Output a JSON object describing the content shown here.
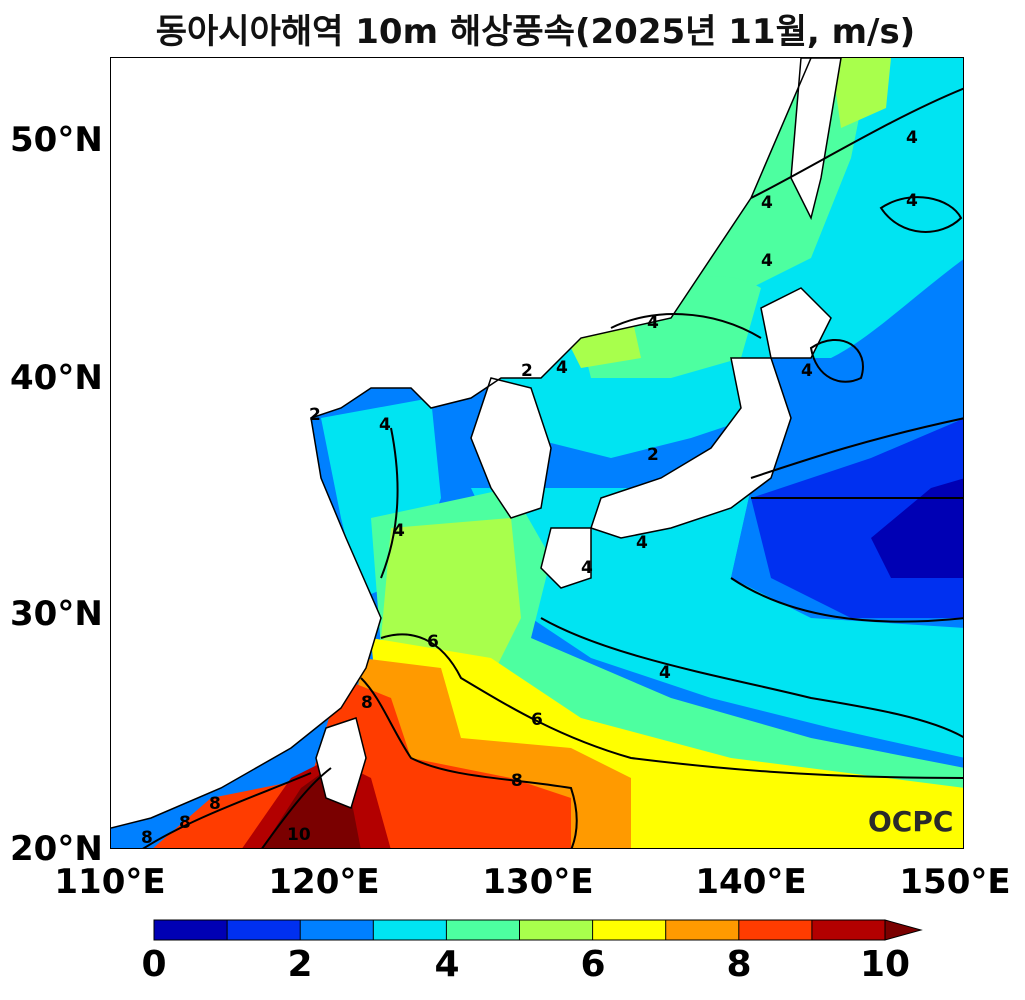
{
  "title": "동아시아해역 10m 해상풍속(2025년 11월, m/s)",
  "map": {
    "region": "East Asian seas",
    "variable": "10m sea surface wind speed",
    "units": "m/s",
    "lon_range": [
      110,
      150
    ],
    "lat_range": [
      20,
      53.5
    ],
    "lat_ticks": [
      "50°N",
      "40°N",
      "30°N",
      "20°N"
    ],
    "lon_ticks": [
      "110°E",
      "120°E",
      "130°E",
      "140°E",
      "150°E"
    ],
    "contour_labels": [
      "2",
      "2",
      "2",
      "4",
      "4",
      "4",
      "4",
      "4",
      "4",
      "4",
      "4",
      "4",
      "4",
      "4",
      "4",
      "6",
      "6",
      "8",
      "8",
      "8",
      "8",
      "8",
      "10"
    ],
    "watermark": "OCPC"
  },
  "colorbar": {
    "tick_labels": [
      "0",
      "2",
      "4",
      "6",
      "8",
      "10"
    ],
    "colors": [
      "#0000b4",
      "#0030f0",
      "#0080ff",
      "#00e4f2",
      "#4dffa0",
      "#a8ff4c",
      "#ffff00",
      "#ff9a00",
      "#ff3c00",
      "#b30000",
      "#7a0000"
    ],
    "extend": "max"
  }
}
